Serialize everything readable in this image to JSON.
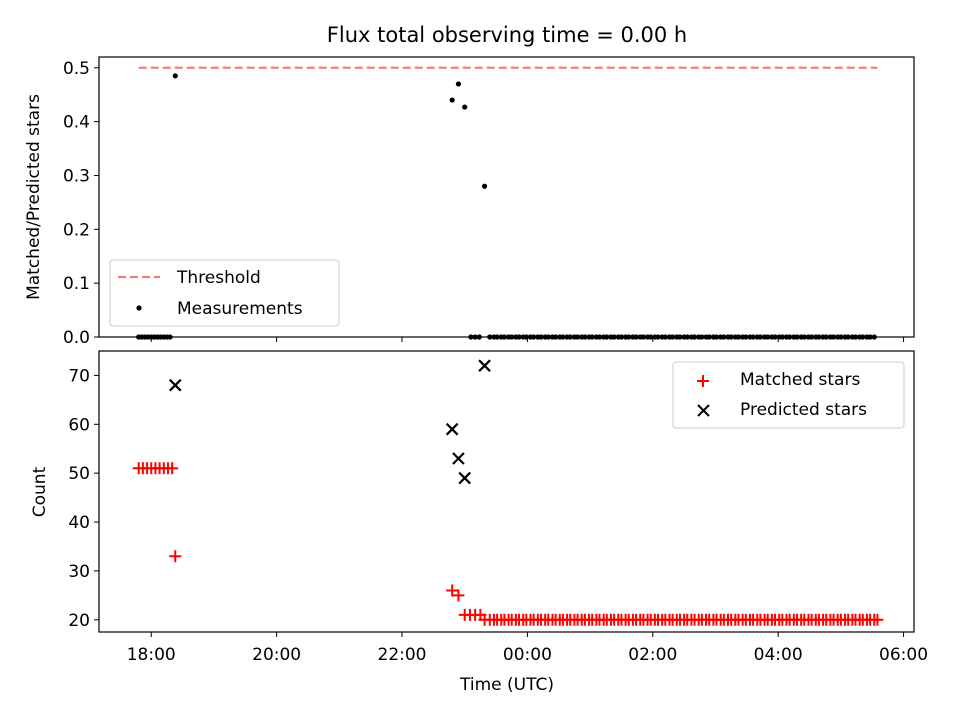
{
  "chart_data": [
    {
      "type": "scatter",
      "title": "Flux total observing time = 0.00 h",
      "xlabel": "",
      "ylabel": "Matched/Predicted stars",
      "xlim": [
        "17:10",
        "06:10"
      ],
      "ylim": [
        0,
        0.52
      ],
      "yticks": [
        "0.0",
        "0.1",
        "0.2",
        "0.3",
        "0.4",
        "0.5"
      ],
      "grid": false,
      "legend_position": "lower-left",
      "legend": [
        "Threshold",
        "Measurements"
      ],
      "threshold": {
        "name": "Threshold",
        "value": 0.5,
        "x_start": "17:48",
        "x_end": "05:35",
        "color": "#f08080"
      },
      "series": [
        {
          "name": "Measurements",
          "color": "#000000",
          "points": [
            {
              "x": "17:48",
              "y": 0.0
            },
            {
              "x": "17:51",
              "y": 0.0
            },
            {
              "x": "17:54",
              "y": 0.0
            },
            {
              "x": "17:57",
              "y": 0.0
            },
            {
              "x": "18:00",
              "y": 0.0
            },
            {
              "x": "18:03",
              "y": 0.0
            },
            {
              "x": "18:06",
              "y": 0.0
            },
            {
              "x": "18:09",
              "y": 0.0
            },
            {
              "x": "18:12",
              "y": 0.0
            },
            {
              "x": "18:15",
              "y": 0.0
            },
            {
              "x": "18:18",
              "y": 0.0
            },
            {
              "x": "18:23",
              "y": 0.485
            },
            {
              "x": "22:48",
              "y": 0.44
            },
            {
              "x": "22:54",
              "y": 0.47
            },
            {
              "x": "23:00",
              "y": 0.427
            },
            {
              "x": "23:06",
              "y": 0.0
            },
            {
              "x": "23:10",
              "y": 0.0
            },
            {
              "x": "23:14",
              "y": 0.0
            },
            {
              "x": "23:19",
              "y": 0.28
            }
          ],
          "zero_run": {
            "x_start": "23:24",
            "x_end": "05:33",
            "step_minutes": 3.5,
            "y": 0.0
          }
        }
      ]
    },
    {
      "type": "scatter",
      "title": "",
      "xlabel": "Time (UTC)",
      "ylabel": "Count",
      "xlim": [
        "17:10",
        "06:10"
      ],
      "ylim": [
        17.5,
        75
      ],
      "yticks": [
        "20",
        "30",
        "40",
        "50",
        "60",
        "70"
      ],
      "xticks": [
        "18:00",
        "20:00",
        "22:00",
        "00:00",
        "02:00",
        "04:00",
        "06:00"
      ],
      "grid": false,
      "legend_position": "top-right",
      "legend": [
        "Matched stars",
        "Predicted stars"
      ],
      "series": [
        {
          "name": "Matched stars",
          "marker": "plus",
          "color": "#ff0000",
          "points": [
            {
              "x": "17:48",
              "y": 51
            },
            {
              "x": "17:52",
              "y": 51
            },
            {
              "x": "17:56",
              "y": 51
            },
            {
              "x": "18:00",
              "y": 51
            },
            {
              "x": "18:04",
              "y": 51
            },
            {
              "x": "18:08",
              "y": 51
            },
            {
              "x": "18:12",
              "y": 51
            },
            {
              "x": "18:16",
              "y": 51
            },
            {
              "x": "18:20",
              "y": 51
            },
            {
              "x": "18:23",
              "y": 33
            },
            {
              "x": "22:48",
              "y": 26
            },
            {
              "x": "22:54",
              "y": 25
            },
            {
              "x": "23:00",
              "y": 21
            },
            {
              "x": "23:05",
              "y": 21
            },
            {
              "x": "23:10",
              "y": 21
            },
            {
              "x": "23:15",
              "y": 21
            },
            {
              "x": "23:19",
              "y": 20
            }
          ],
          "constant_run": {
            "x_start": "23:24",
            "x_end": "05:37",
            "step_minutes": 3.5,
            "y": 20
          }
        },
        {
          "name": "Predicted stars",
          "marker": "x",
          "color": "#000000",
          "points": [
            {
              "x": "18:23",
              "y": 68
            },
            {
              "x": "22:48",
              "y": 59
            },
            {
              "x": "22:54",
              "y": 53
            },
            {
              "x": "23:00",
              "y": 49
            },
            {
              "x": "23:19",
              "y": 72
            }
          ]
        }
      ]
    }
  ]
}
